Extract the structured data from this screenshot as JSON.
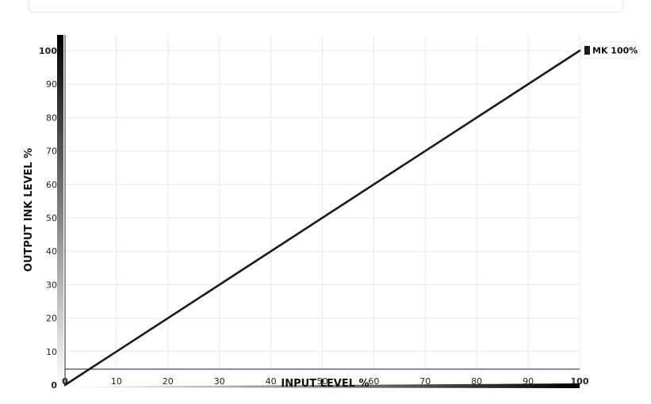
{
  "chart_data": {
    "type": "line",
    "xlabel": "INPUT LEVEL %",
    "ylabel": "OUTPUT INK LEVEL %",
    "xlim": [
      0,
      100
    ],
    "ylim": [
      0,
      100
    ],
    "x_ticks": [
      "0",
      "10",
      "20",
      "30",
      "40",
      "50",
      "60",
      "70",
      "80",
      "90",
      "100"
    ],
    "y_ticks": [
      "0",
      "10",
      "20",
      "30",
      "40",
      "50",
      "60",
      "70",
      "80",
      "90",
      "100"
    ],
    "grid": true,
    "legend_position": "top-right",
    "series": [
      {
        "name": "MK 100%",
        "color": "#1a1a1a",
        "points": [
          [
            0,
            0
          ],
          [
            100,
            100
          ]
        ]
      }
    ]
  }
}
